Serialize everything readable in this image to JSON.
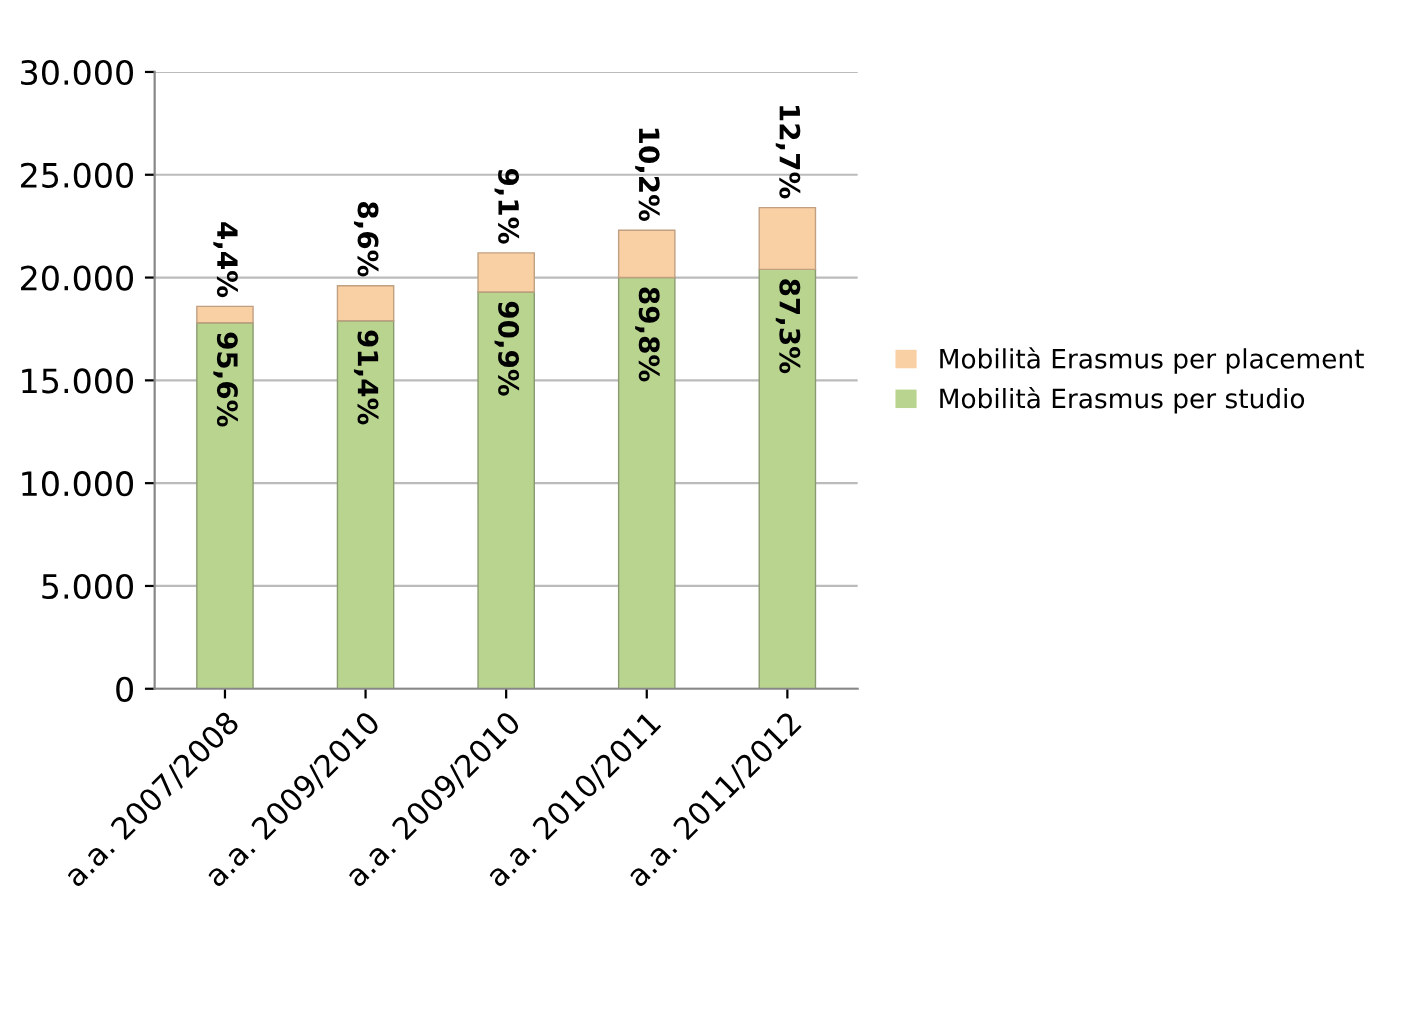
{
  "chart_data": {
    "type": "bar",
    "stacked": true,
    "categories": [
      "a.a. 2007/2008",
      "a.a. 2009/2010",
      "a.a. 2009/2010",
      "a.a. 2010/2011",
      "a.a. 2011/2012"
    ],
    "series": [
      {
        "name": "Mobilità Erasmus per studio",
        "color": "#b8d48e",
        "values": [
          17800,
          17900,
          19300,
          20000,
          20400
        ]
      },
      {
        "name": "Mobilità Erasmus per placement",
        "color": "#f9cfa4",
        "values": [
          800,
          1700,
          1900,
          2300,
          3000
        ]
      }
    ],
    "annotations": [
      {
        "text": "95,6%",
        "x": "a.a. 2007/2008",
        "y": 17800
      },
      {
        "text": "91,4%",
        "x": "a.a. 2009/2010",
        "y": 17900
      },
      {
        "text": "90,9%",
        "y": 19300
      },
      {
        "text": "89,8%",
        "x": "a.a. 2010/2011",
        "y": 20000
      },
      {
        "text": "87,3%",
        "x": "a.a. 2011/2012",
        "y": 20400
      },
      {
        "text": "4,4%",
        "x": "a.a. 2007/2008",
        "y": 18600
      },
      {
        "text": "8,6%",
        "x": "a.a. 2009/2010",
        "y": 19600
      },
      {
        "text": "9,1%",
        "y": 21200
      },
      {
        "text": "10,2%",
        "x": "a.a. 2010/2011",
        "y": 22300
      },
      {
        "text": "12,7%",
        "x": "a.a. 2011/2012",
        "y": 23400
      }
    ],
    "ylim": [
      0,
      30000
    ],
    "yticks": [
      {
        "value": 0,
        "label": "0"
      },
      {
        "value": 5000,
        "label": "5.000"
      },
      {
        "value": 10000,
        "label": "10.000"
      },
      {
        "value": 15000,
        "label": "15.000"
      },
      {
        "value": 20000,
        "label": "20.000"
      },
      {
        "value": 25000,
        "label": "25.000"
      },
      {
        "value": 30000,
        "label": "30.000"
      }
    ],
    "grid": "y",
    "legend": "right"
  }
}
